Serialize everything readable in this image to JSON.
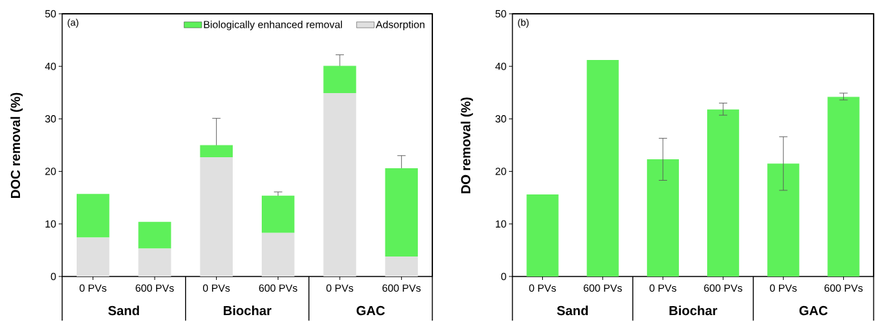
{
  "chart_data": [
    {
      "type": "bar",
      "ylabel": "DOC removal (%)",
      "categories": [
        "0 PVs",
        "600 PVs",
        "0 PVs",
        "600 PVs",
        "0 PVs",
        "600 PVs"
      ],
      "stacked": true,
      "ylim": [
        0,
        50
      ],
      "yticks": [
        0,
        10,
        20,
        30,
        40,
        50
      ],
      "legend": "top right",
      "annotations": [
        "(a)",
        "Sand",
        "Biochar",
        "GAC"
      ],
      "series": [
        {
          "name": "Adsorption",
          "color": "#e0e0e0",
          "values": [
            7.4,
            5.3,
            22.7,
            8.3,
            34.9,
            3.8
          ]
        },
        {
          "name": "Biologically enhanced removal",
          "color": "#5ef05a",
          "values": [
            8.3,
            5.1,
            2.3,
            7.1,
            5.2,
            16.8
          ],
          "errors": [
            null,
            null,
            5.1,
            0.7,
            2.1,
            2.4
          ]
        }
      ]
    },
    {
      "type": "bar",
      "ylabel": "DO removal (%)",
      "categories": [
        "0 PVs",
        "600 PVs",
        "0 PVs",
        "600 PVs",
        "0 PVs",
        "600 PVs"
      ],
      "ylim": [
        0,
        50
      ],
      "yticks": [
        0,
        10,
        20,
        30,
        40,
        50
      ],
      "annotations": [
        "(b)",
        "Sand",
        "Biochar",
        "GAC"
      ],
      "color": "#5ef05a",
      "values": [
        15.6,
        41.2,
        22.3,
        31.8,
        21.5,
        34.2
      ],
      "errors": [
        null,
        null,
        [
          18.3,
          26.3
        ],
        [
          30.7,
          33.0
        ],
        [
          16.4,
          26.6
        ],
        [
          33.6,
          34.9
        ]
      ]
    }
  ]
}
